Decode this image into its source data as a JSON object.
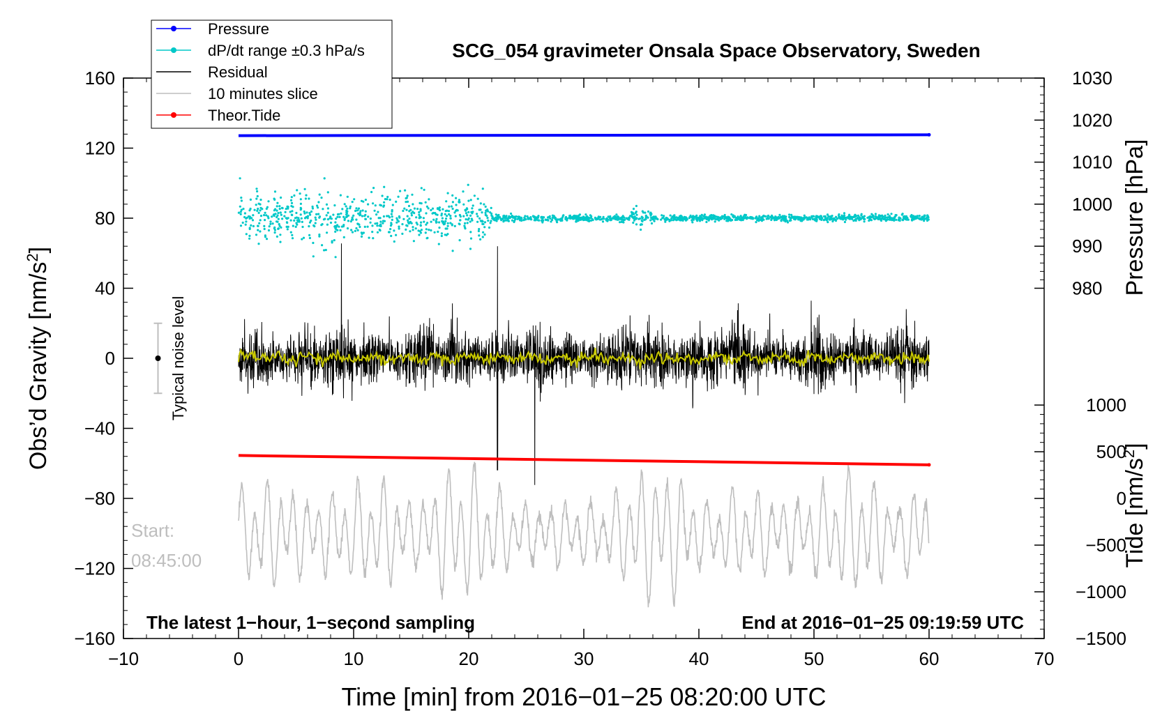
{
  "chart_data": {
    "type": "line",
    "title": "SCG_054 gravimeter Onsala Space Observatory, Sweden",
    "xlabel": "Time [min] from 2016−01−25 08:20:00 UTC",
    "ylabel_left": "Obs’d Gravity [nm/s",
    "ylabel_left_sup": "2",
    "ylabel_left_end": "]",
    "ylabel_right_pressure": "Pressure [hPa]",
    "ylabel_right_tide": "Tide [nm/s",
    "ylabel_right_tide_sup": "2",
    "ylabel_right_tide_end": "]",
    "xlim": [
      -10,
      70
    ],
    "ylim": [
      -160,
      160
    ],
    "pressure_axis": {
      "range": [
        980,
        1030
      ],
      "map_to_gravity": [
        40,
        160
      ]
    },
    "tide_axis": {
      "range": [
        -1500,
        1000
      ],
      "map_to_gravity": [
        -160,
        -26.7
      ]
    },
    "x_ticks": [
      "−10",
      "0",
      "10",
      "20",
      "30",
      "40",
      "50",
      "60",
      "70"
    ],
    "x_tick_values": [
      -10,
      0,
      10,
      20,
      30,
      40,
      50,
      60,
      70
    ],
    "y_ticks": [
      "160",
      "120",
      "80",
      "40",
      "0",
      "−40",
      "−80",
      "−120",
      "−160"
    ],
    "y_tick_values": [
      160,
      120,
      80,
      40,
      0,
      -40,
      -80,
      -120,
      -160
    ],
    "pressure_ticks": [
      "1030",
      "1020",
      "1010",
      "1000",
      "990",
      "980"
    ],
    "pressure_tick_values": [
      1030,
      1020,
      1010,
      1000,
      990,
      980
    ],
    "tide_ticks": [
      "1000",
      "500",
      "0",
      "−500",
      "−1000",
      "−1500"
    ],
    "tide_tick_values": [
      1000,
      500,
      0,
      -500,
      -1000,
      -1500
    ],
    "legend": [
      {
        "label": "Pressure",
        "color": "#0000ff",
        "marker": true
      },
      {
        "label": "dP/dt range ±0.3 hPa/s",
        "color": "#00c8c8",
        "marker": true
      },
      {
        "label": "Residual",
        "color": "#000000",
        "marker": false
      },
      {
        "label": "10 minutes slice",
        "color": "#bebebe",
        "marker": false
      },
      {
        "label": "Theor.Tide",
        "color": "#ff0000",
        "marker": true
      }
    ],
    "series": [
      {
        "name": "Pressure",
        "color": "#0000ff",
        "x": [
          0,
          60
        ],
        "pressure_hPa": [
          1016.3,
          1016.5
        ]
      },
      {
        "name": "dP/dt",
        "color": "#00c8c8",
        "center": 80,
        "spread_early": 14,
        "spread_late": 2,
        "transition_min": 22
      },
      {
        "name": "Residual",
        "color": "#000000",
        "center": 0,
        "typical_amplitude": 18,
        "spike_x": 22.5,
        "spike_range": [
          -64,
          64
        ]
      },
      {
        "name": "Residual smoothed",
        "color": "#c8c800",
        "center": 0
      },
      {
        "name": "10 minutes slice",
        "color": "#bebebe",
        "center": -100,
        "amplitude": 30
      },
      {
        "name": "Theor.Tide",
        "color": "#ff0000",
        "x": [
          0,
          60
        ],
        "tide_nm_s2": [
          460,
          360
        ]
      }
    ],
    "noise_bar": {
      "label": "Typical noise level",
      "x": -7,
      "center": 0,
      "range": [
        -20,
        20
      ],
      "color": "#bebebe"
    },
    "annotations": {
      "start_label": "Start:",
      "start_time": "08:45:00",
      "bottom_left": "The latest 1−hour, 1−second sampling",
      "bottom_right": "End at 2016−01−25 09:19:59 UTC"
    }
  }
}
